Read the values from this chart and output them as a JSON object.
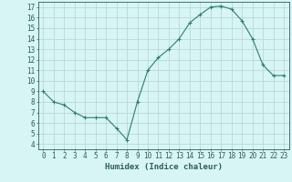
{
  "x": [
    0,
    1,
    2,
    3,
    4,
    5,
    6,
    7,
    8,
    9,
    10,
    11,
    12,
    13,
    14,
    15,
    16,
    17,
    18,
    19,
    20,
    21,
    22,
    23
  ],
  "y": [
    9.0,
    8.0,
    7.7,
    7.0,
    6.5,
    6.5,
    6.5,
    5.5,
    4.4,
    8.0,
    11.0,
    12.2,
    13.0,
    14.0,
    15.5,
    16.3,
    17.0,
    17.1,
    16.8,
    15.7,
    14.0,
    11.5,
    10.5,
    10.5
  ],
  "line_color": "#2e7d6e",
  "marker": "+",
  "marker_size": 3.5,
  "bg_color": "#d7f5f5",
  "grid_color": "#b8d8d8",
  "xlabel": "Humidex (Indice chaleur)",
  "xlim": [
    -0.5,
    23.5
  ],
  "ylim": [
    3.5,
    17.5
  ],
  "yticks": [
    4,
    5,
    6,
    7,
    8,
    9,
    10,
    11,
    12,
    13,
    14,
    15,
    16,
    17
  ],
  "xticks": [
    0,
    1,
    2,
    3,
    4,
    5,
    6,
    7,
    8,
    9,
    10,
    11,
    12,
    13,
    14,
    15,
    16,
    17,
    18,
    19,
    20,
    21,
    22,
    23
  ],
  "tick_color": "#2e5c5c",
  "axis_color": "#2e5c5c",
  "label_fontsize": 6.5,
  "tick_fontsize": 5.5
}
